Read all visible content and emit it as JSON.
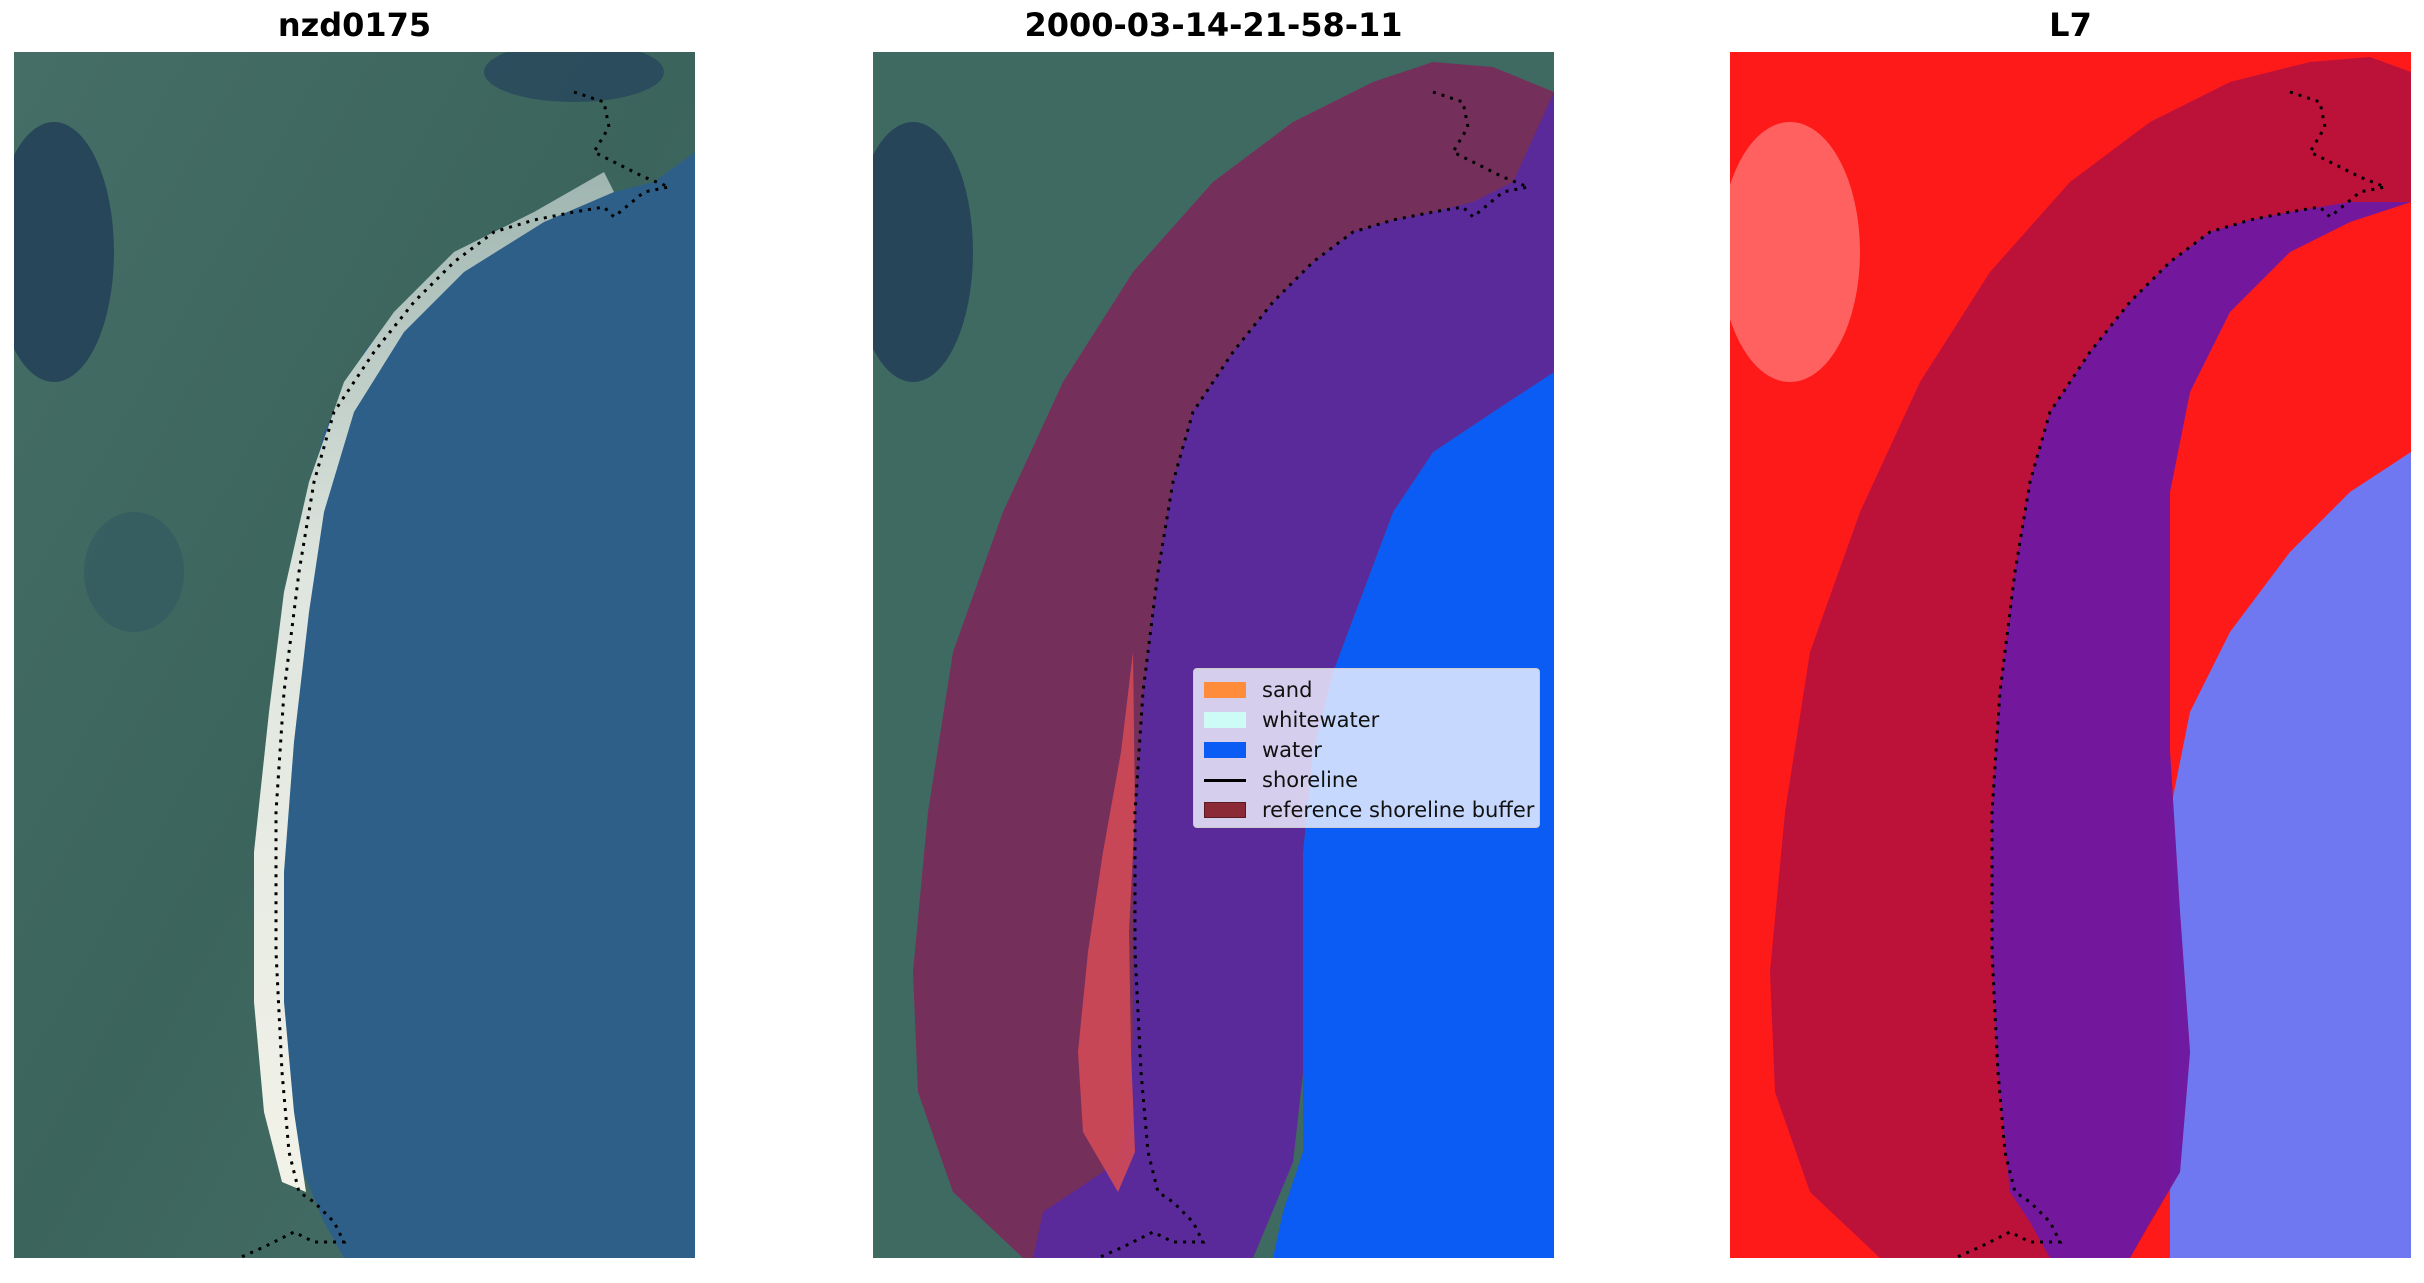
{
  "panels": [
    {
      "title": "nzd0175"
    },
    {
      "title": "2000-03-14-21-58-11"
    },
    {
      "title": "L7"
    }
  ],
  "legend": {
    "items": [
      {
        "label": "sand",
        "color": "#ff8c3a",
        "kind": "patch"
      },
      {
        "label": "whitewater",
        "color": "#ccfcf5",
        "kind": "patch"
      },
      {
        "label": "water",
        "color": "#0a5cf5",
        "kind": "patch"
      },
      {
        "label": "shoreline",
        "color": "#000000",
        "kind": "line"
      },
      {
        "label": "reference shoreline buffer",
        "color": "#8b2a36",
        "kind": "patch"
      }
    ]
  },
  "colors": {
    "sea": "#2f5f86",
    "land": "#3f6a62",
    "beach": "#e6ebe4",
    "buffer": "#7a2a5a",
    "classified_water": "#5a2a9a",
    "ocean_class": "#0a5cf5",
    "index_land": "#ff1a1a",
    "index_water": "#6f78f0"
  }
}
